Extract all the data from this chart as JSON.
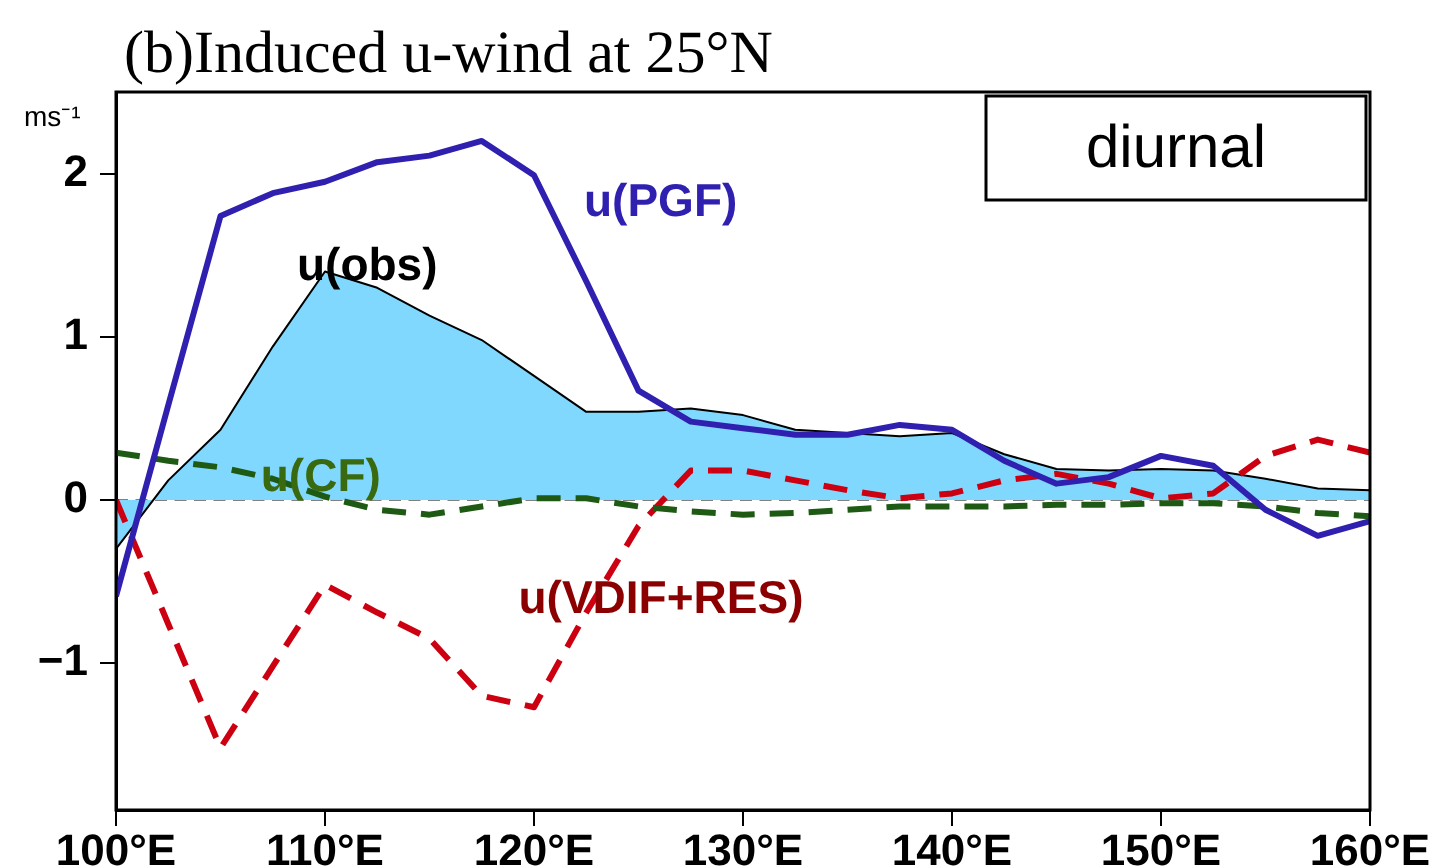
{
  "chart_data": {
    "type": "line",
    "title": "(b)Induced u-wind at 25°N",
    "ylabel": "ms⁻¹",
    "annotations": [
      "diurnal"
    ],
    "x": [
      100,
      102.5,
      105,
      107.5,
      110,
      112.5,
      115,
      117.5,
      120,
      122.5,
      125,
      127.5,
      130,
      132.5,
      135,
      137.5,
      140,
      142.5,
      145,
      147.5,
      150,
      152.5,
      155,
      157.5,
      160
    ],
    "xlim": [
      100,
      160
    ],
    "xticks": [
      {
        "value": 100,
        "label": "100°E"
      },
      {
        "value": 110,
        "label": "110°E"
      },
      {
        "value": 120,
        "label": "120°E"
      },
      {
        "value": 130,
        "label": "130°E"
      },
      {
        "value": 140,
        "label": "140°E"
      },
      {
        "value": 150,
        "label": "150°E"
      },
      {
        "value": 160,
        "label": "160°E"
      }
    ],
    "ylim": [
      -1.9,
      2.5
    ],
    "yticks": [
      {
        "value": -1,
        "label": "−1"
      },
      0,
      1,
      2
    ],
    "grid": false,
    "legend": false,
    "marker": "none",
    "ref_lines": [
      {
        "axis": "y",
        "value": 0,
        "color": "#808080",
        "line_style": "dashed"
      }
    ],
    "series": [
      {
        "name": "u(obs)",
        "type": "area",
        "color": "#80d8ff",
        "line_style": "solid",
        "values": [
          -0.3,
          0.12,
          0.43,
          0.94,
          1.4,
          1.3,
          1.13,
          0.98,
          0.76,
          0.54,
          0.54,
          0.56,
          0.52,
          0.43,
          0.41,
          0.39,
          0.41,
          0.28,
          0.19,
          0.18,
          0.19,
          0.18,
          0.13,
          0.07,
          0.06
        ]
      },
      {
        "name": "u(PGF)",
        "type": "line",
        "color": "#3020b0",
        "line_style": "solid",
        "values": [
          -0.59,
          0.58,
          1.74,
          1.88,
          1.95,
          2.07,
          2.11,
          2.2,
          1.99,
          1.34,
          0.67,
          0.48,
          0.44,
          0.4,
          0.4,
          0.46,
          0.43,
          0.24,
          0.1,
          0.14,
          0.27,
          0.21,
          -0.06,
          -0.22,
          -0.13
        ]
      },
      {
        "name": "u(CF)",
        "type": "line",
        "color": "#1e5a14",
        "line_style": "dashed",
        "values": [
          0.29,
          0.24,
          0.2,
          0.13,
          0.02,
          -0.06,
          -0.09,
          -0.04,
          0.01,
          0.01,
          -0.04,
          -0.07,
          -0.09,
          -0.08,
          -0.06,
          -0.04,
          -0.04,
          -0.04,
          -0.03,
          -0.03,
          -0.02,
          -0.02,
          -0.04,
          -0.08,
          -0.1
        ]
      },
      {
        "name": "u(VDIF+RES)",
        "type": "line",
        "color": "#cc0010",
        "line_style": "dashed",
        "values": [
          0,
          -0.76,
          -1.52,
          -1.02,
          -0.52,
          -0.69,
          -0.85,
          -1.2,
          -1.27,
          -0.69,
          -0.16,
          0.18,
          0.18,
          0.12,
          0.06,
          0.01,
          0.04,
          0.12,
          0.16,
          0.1,
          0.01,
          0.04,
          0.27,
          0.37,
          0.29
        ]
      }
    ]
  }
}
